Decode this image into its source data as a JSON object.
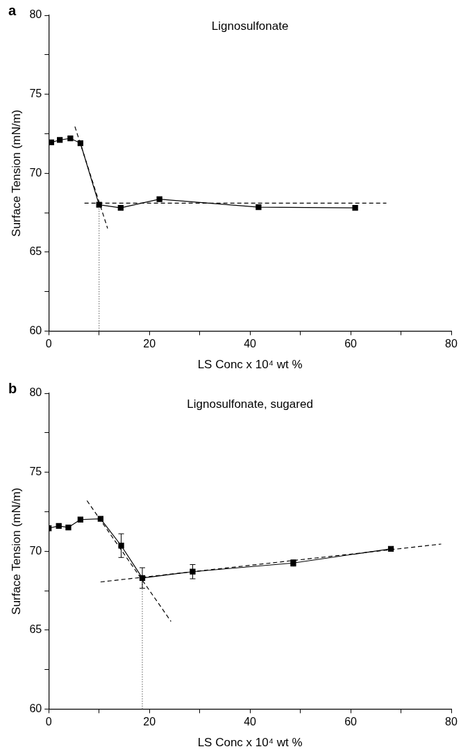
{
  "chart_data": [
    {
      "type": "line",
      "title": "Lignosulfonate",
      "xlabel": "LS Conc x 10⁴ wt %",
      "ylabel": "Surface Tension (mN/m)",
      "annotations": [
        "a"
      ],
      "xlim": [
        0,
        80
      ],
      "xticks": [
        0,
        {
          "value": 10,
          "label": null
        },
        20,
        {
          "value": 30,
          "label": null
        },
        40,
        {
          "value": 50,
          "label": null
        },
        60,
        {
          "value": 70,
          "label": null
        },
        80
      ],
      "ylim": [
        60,
        80
      ],
      "yticks": [
        60,
        {
          "value": 62.5,
          "label": null
        },
        65,
        {
          "value": 67.5,
          "label": null
        },
        70,
        {
          "value": 72.5,
          "label": null
        },
        75,
        {
          "value": 77.5,
          "label": null
        },
        80
      ],
      "grid": false,
      "legend": false,
      "series": [
        {
          "x": [
            0.5,
            2.2,
            4.3,
            6.3,
            10,
            14.3,
            22,
            41.7,
            60.9
          ],
          "values": [
            71.95,
            72.1,
            72.2,
            71.9,
            68.0,
            67.8,
            68.35,
            67.85,
            67.8
          ],
          "color": "#000000",
          "marker": "square",
          "line_style": "solid"
        },
        {
          "x": [
            5.2,
            11.7
          ],
          "values": [
            72.95,
            66.5
          ],
          "color": "#000000",
          "marker": "none",
          "line_style": "dashed"
        },
        {
          "x": [
            7.1,
            67.1
          ],
          "values": [
            68.1,
            68.1
          ],
          "color": "#000000",
          "marker": "none",
          "line_style": "dashed"
        },
        {
          "x": [
            10,
            10
          ],
          "values": [
            60,
            68.0
          ],
          "color": "#777777",
          "marker": "none",
          "line_style": "dotted"
        }
      ]
    },
    {
      "type": "line",
      "title": "Lignosulfonate, sugared",
      "xlabel": "LS Conc x 10⁴ wt %",
      "ylabel": "Surface Tension (mN/m)",
      "annotations": [
        "b"
      ],
      "xlim": [
        0,
        80
      ],
      "xticks": [
        0,
        {
          "value": 10,
          "label": null
        },
        20,
        {
          "value": 30,
          "label": null
        },
        40,
        {
          "value": 50,
          "label": null
        },
        60,
        {
          "value": 70,
          "label": null
        },
        80
      ],
      "ylim": [
        60,
        80
      ],
      "yticks": [
        60,
        {
          "value": 62.5,
          "label": null
        },
        65,
        {
          "value": 67.5,
          "label": null
        },
        70,
        {
          "value": 72.5,
          "label": null
        },
        75,
        {
          "value": 77.5,
          "label": null
        },
        80
      ],
      "grid": false,
      "legend": false,
      "series": [
        {
          "x": [
            0,
            2.0,
            3.9,
            6.3,
            10.3,
            14.4,
            18.6,
            28.6,
            48.6,
            68.0
          ],
          "values": [
            71.45,
            71.6,
            71.5,
            72.0,
            72.05,
            70.35,
            68.3,
            68.7,
            69.25,
            70.15
          ],
          "errors": [
            null,
            null,
            null,
            null,
            null,
            0.75,
            0.65,
            0.45,
            0.2,
            null
          ],
          "color": "#000000",
          "marker": "square",
          "line_style": "solid"
        },
        {
          "x": [
            7.6,
            24.3
          ],
          "values": [
            73.2,
            65.55
          ],
          "color": "#000000",
          "marker": "none",
          "line_style": "dashed"
        },
        {
          "x": [
            10.3,
            78
          ],
          "values": [
            68.05,
            70.45
          ],
          "color": "#000000",
          "marker": "none",
          "line_style": "dashed"
        },
        {
          "x": [
            18.6,
            18.6
          ],
          "values": [
            60,
            68.3
          ],
          "color": "#777777",
          "marker": "none",
          "line_style": "dotted"
        }
      ]
    }
  ]
}
